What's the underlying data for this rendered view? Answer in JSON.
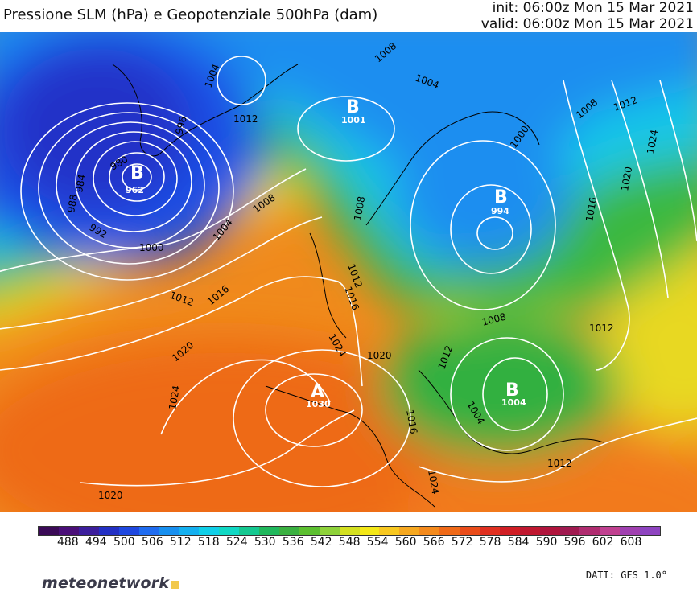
{
  "header": {
    "title": "Pressione SLM (hPa) e Geopotenziale 500hPa (dam)",
    "init": "init: 06:00z Mon 15 Mar 2021",
    "valid": "valid: 06:00z Mon 15 Mar 2021"
  },
  "pressure_centers": [
    {
      "letter": "B",
      "value": "962"
    },
    {
      "letter": "B",
      "value": "1001"
    },
    {
      "letter": "B",
      "value": "994"
    },
    {
      "letter": "A",
      "value": "1030"
    },
    {
      "letter": "B",
      "value": "1004"
    }
  ],
  "isobar_labels": [
    "1004",
    "996",
    "980",
    "984",
    "988",
    "992",
    "1000",
    "1012",
    "1008",
    "1004",
    "1008",
    "1000",
    "1004",
    "1008",
    "1012",
    "1016",
    "1020",
    "1024",
    "1008",
    "1012",
    "1016",
    "1024",
    "1020",
    "1024",
    "1020",
    "1016",
    "1012",
    "1008",
    "1012",
    "1004",
    "1012",
    "1012",
    "1016",
    "1020",
    "1024"
  ],
  "colorbar": {
    "labels": [
      "488",
      "494",
      "500",
      "506",
      "512",
      "518",
      "524",
      "530",
      "536",
      "542",
      "548",
      "554",
      "560",
      "566",
      "572",
      "578",
      "584",
      "590",
      "596",
      "602",
      "608"
    ],
    "colors": [
      "#3b0a57",
      "#4a0f78",
      "#3c1e9c",
      "#2330c4",
      "#1f48e0",
      "#1f6cf0",
      "#1890f0",
      "#14b0f0",
      "#10cfe8",
      "#10d8c4",
      "#14c890",
      "#20b85c",
      "#3ab040",
      "#5cc030",
      "#8ed23a",
      "#d4e020",
      "#f4e818",
      "#f8c820",
      "#f6a820",
      "#f48a1c",
      "#f06a18",
      "#ea4c1a",
      "#e03020",
      "#d01e24",
      "#c01830",
      "#b0143c",
      "#a01a50",
      "#b02c70",
      "#c04090",
      "#a040b0",
      "#8e44c0"
    ]
  },
  "footer": {
    "logo": "meteonetwork",
    "source": "DATI: GFS 1.0°"
  }
}
